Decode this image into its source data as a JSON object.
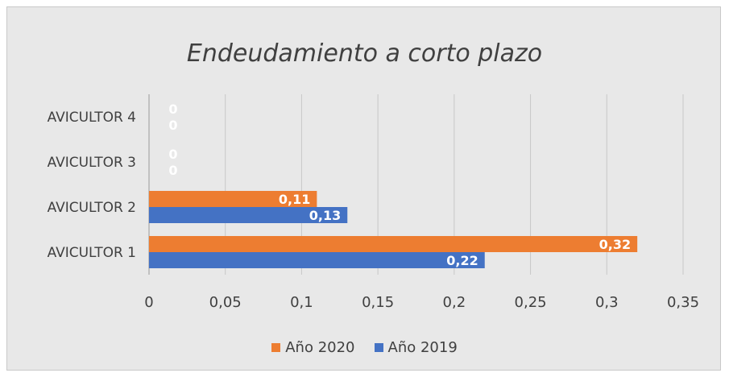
{
  "chart_data": {
    "type": "bar",
    "orientation": "horizontal",
    "title": "Endeudamiento a corto plazo",
    "categories": [
      "AVICULTOR 1",
      "AVICULTOR 2",
      "AVICULTOR 3",
      "AVICULTOR 4"
    ],
    "series": [
      {
        "name": "Año 2020",
        "color": "#ed7d31",
        "values": [
          0.32,
          0.11,
          0,
          0
        ],
        "labels": [
          "0,32",
          "0,11",
          "0",
          "0"
        ]
      },
      {
        "name": "Año 2019",
        "color": "#4472c4",
        "values": [
          0.22,
          0.13,
          0,
          0
        ],
        "labels": [
          "0,22",
          "0,13",
          "0",
          "0"
        ]
      }
    ],
    "xlim": [
      0,
      0.35
    ],
    "x_ticks": [
      0,
      0.05,
      0.1,
      0.15,
      0.2,
      0.25,
      0.3,
      0.35
    ],
    "x_tick_labels": [
      "0",
      "0,05",
      "0,1",
      "0,15",
      "0,2",
      "0,25",
      "0,3",
      "0,35"
    ],
    "grid": "vertical",
    "legend_position": "bottom"
  }
}
